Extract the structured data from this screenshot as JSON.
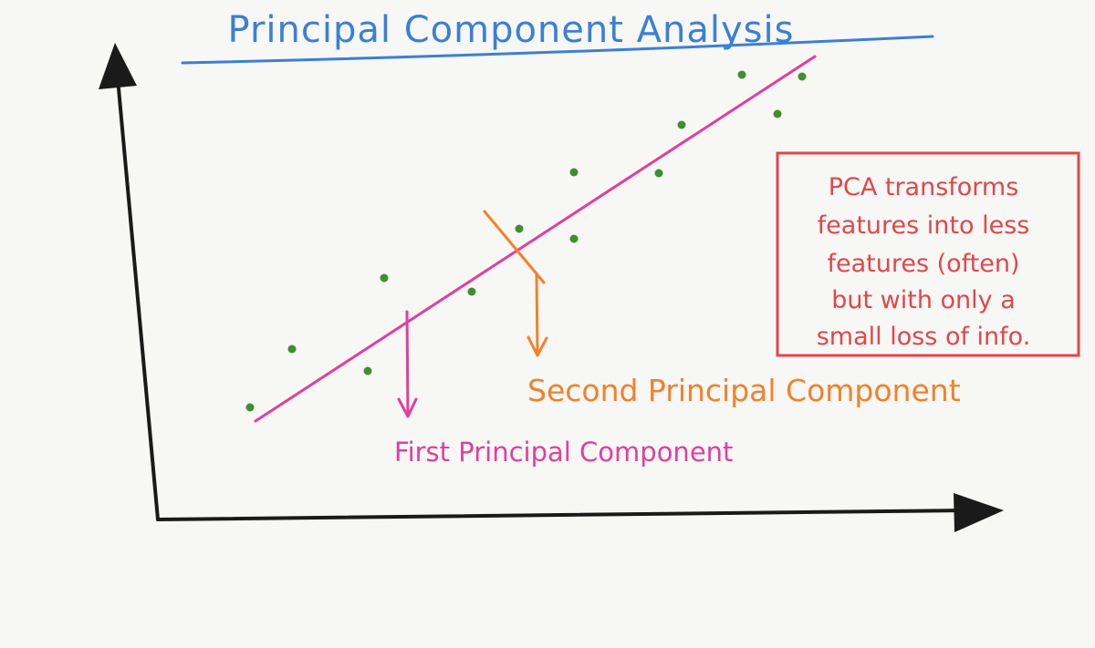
{
  "title": "Principal Component Analysis",
  "first_component_label": "First Principal Component",
  "second_component_label": "Second Principal Component",
  "note": {
    "lines": [
      "PCA transforms",
      "features into less",
      "features (often)",
      "but with only a",
      "small loss of info."
    ]
  },
  "colors": {
    "title": "#3b7fd6",
    "axes": "#1a1a1a",
    "first_component": "#e0409a",
    "second_component": "#f0822a",
    "points": "#3f8f2f",
    "note": "#e0474a"
  }
}
